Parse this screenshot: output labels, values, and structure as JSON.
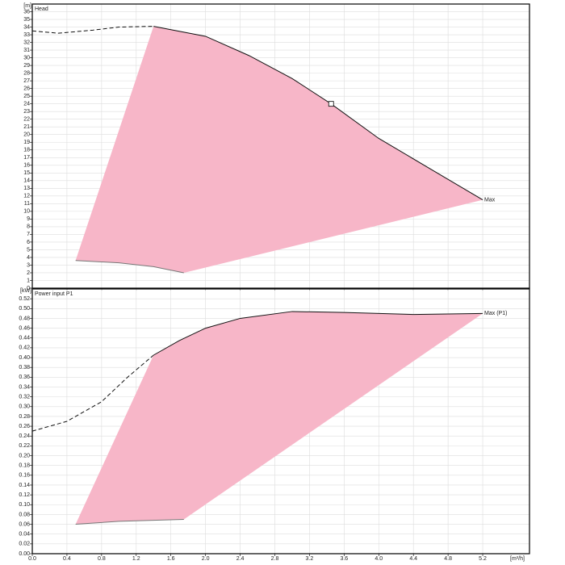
{
  "chart_data": [
    {
      "type": "line",
      "title": "Head",
      "y_unit": "[m]",
      "fill_color": "#f7b6c8",
      "xlim": [
        0,
        5.74
      ],
      "ylim": [
        0,
        37
      ],
      "grid": true,
      "xtick_labels": false,
      "xticks": [
        {
          "value": 0,
          "label": "0.0"
        },
        0.4,
        0.8,
        1.2,
        1.6,
        {
          "value": 2,
          "label": "2.0"
        },
        2.4,
        2.8,
        3.2,
        3.6,
        {
          "value": 4,
          "label": "4.0"
        },
        4.4,
        4.8,
        5.2
      ],
      "yticks": [
        0,
        1,
        2,
        3,
        4,
        5,
        6,
        7,
        8,
        9,
        10,
        11,
        12,
        13,
        14,
        15,
        16,
        17,
        18,
        19,
        20,
        21,
        22,
        23,
        24,
        25,
        26,
        27,
        28,
        29,
        30,
        31,
        32,
        33,
        34,
        35,
        36
      ],
      "series": [
        {
          "name": "Max",
          "style": "solid",
          "x": [
            1.4,
            2.0,
            2.5,
            3.0,
            3.45,
            4.0,
            4.6,
            5.2
          ],
          "values": [
            34.1,
            32.8,
            30.3,
            27.3,
            24.0,
            19.5,
            15.5,
            11.5
          ]
        },
        {
          "style": "dashed",
          "x": [
            0,
            0.3,
            0.7,
            1.0,
            1.4
          ],
          "values": [
            33.5,
            33.2,
            33.6,
            34.0,
            34.1
          ]
        },
        {
          "style": "min",
          "x": [
            0.5,
            1.0,
            1.4,
            1.75
          ],
          "values": [
            3.6,
            3.3,
            2.8,
            2.0
          ]
        }
      ],
      "point": {
        "x": 3.45,
        "y": 24.0
      }
    },
    {
      "type": "line",
      "title": "Power input P1",
      "y_unit": "[kW]",
      "x_unit": "[m³/h]",
      "fill_color": "#f7b6c8",
      "xlim": [
        0,
        5.74
      ],
      "ylim": [
        0,
        0.54
      ],
      "grid": true,
      "xtick_labels": true,
      "xticks": [
        {
          "value": 0,
          "label": "0.0"
        },
        0.4,
        0.8,
        1.2,
        1.6,
        {
          "value": 2,
          "label": "2.0"
        },
        2.4,
        2.8,
        3.2,
        3.6,
        {
          "value": 4,
          "label": "4.0"
        },
        4.4,
        4.8,
        5.2
      ],
      "yticks": [
        {
          "value": 0,
          "label": "0.00"
        },
        0.02,
        0.04,
        0.06,
        0.08,
        {
          "value": 0.1,
          "label": "0.10"
        },
        0.12,
        0.14,
        0.16,
        0.18,
        {
          "value": 0.2,
          "label": "0.20"
        },
        0.22,
        0.24,
        0.26,
        0.28,
        {
          "value": 0.3,
          "label": "0.30"
        },
        0.32,
        0.34,
        0.36,
        0.38,
        {
          "value": 0.4,
          "label": "0.40"
        },
        0.42,
        0.44,
        0.46,
        0.48,
        {
          "value": 0.5,
          "label": "0.50"
        },
        0.52
      ],
      "series": [
        {
          "name": "Max (P1)",
          "style": "solid",
          "x": [
            1.4,
            1.7,
            2.0,
            2.4,
            3.0,
            3.6,
            4.4,
            5.2
          ],
          "values": [
            0.405,
            0.435,
            0.46,
            0.48,
            0.494,
            0.492,
            0.488,
            0.49
          ]
        },
        {
          "style": "dashed",
          "x": [
            0,
            0.4,
            0.8,
            1.1,
            1.4
          ],
          "values": [
            0.25,
            0.27,
            0.31,
            0.36,
            0.405
          ]
        },
        {
          "style": "min",
          "x": [
            0.5,
            1.0,
            1.75
          ],
          "values": [
            0.06,
            0.066,
            0.07
          ]
        }
      ]
    }
  ]
}
